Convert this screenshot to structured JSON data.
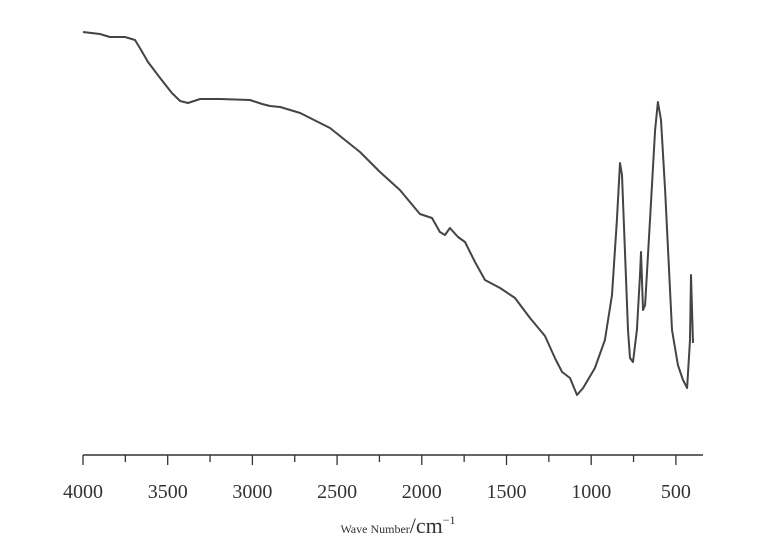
{
  "chart_data": {
    "type": "line",
    "title": "",
    "xlabel_text": "Wave Number",
    "xlabel_unit": "/cm",
    "xlabel_exp": "−1",
    "ylabel": "",
    "xlim": [
      4000,
      340
    ],
    "ylim": [
      0,
      100
    ],
    "x_reversed": true,
    "y_axis_shown": false,
    "grid": false,
    "line_color": "#444444",
    "xticks": [
      4000,
      3500,
      3000,
      2500,
      2000,
      1500,
      1000,
      500
    ],
    "xtick_labels": [
      "4000",
      "3500",
      "3000",
      "2500",
      "2000",
      "1500",
      "1000",
      "500"
    ],
    "minor_xticks": [
      3750,
      3250,
      2750,
      2250,
      1750,
      1250,
      750
    ],
    "series": [
      {
        "x": [
          4000,
          3900,
          3841,
          3752,
          3693,
          3664,
          3616,
          3545,
          3475,
          3427,
          3380,
          3309,
          3191,
          3014,
          2943,
          2896,
          2836,
          2718,
          2542,
          2365,
          2247,
          2129,
          2070,
          2011,
          1940,
          1893,
          1863,
          1834,
          1786,
          1745,
          1686,
          1627,
          1538,
          1450,
          1361,
          1273,
          1214,
          1172,
          1125,
          1084,
          1048,
          978,
          919,
          877,
          848,
          830,
          818,
          801,
          783,
          771,
          753,
          730,
          712,
          706,
          694,
          682,
          653,
          623,
          606,
          588,
          564,
          523,
          488,
          458,
          434,
          417,
          411,
          399
        ],
        "y": [
          99.5,
          99,
          98.25,
          98.25,
          97.5,
          95.5,
          92,
          88,
          84.25,
          82.25,
          81.75,
          82.75,
          82.75,
          82.5,
          81.5,
          81,
          80.75,
          79.25,
          75.5,
          69.5,
          64.5,
          60,
          57,
          54,
          53,
          49.5,
          48.75,
          50.5,
          48.25,
          47,
          42,
          37.5,
          35.5,
          33,
          28,
          23.5,
          18,
          14.5,
          13,
          8.75,
          10.5,
          15.5,
          22.5,
          33.75,
          52.5,
          66.75,
          63.75,
          45,
          25,
          18,
          17,
          25,
          38.75,
          44.5,
          30,
          31.25,
          52.5,
          75,
          82,
          77.5,
          60,
          25,
          16.25,
          12.5,
          10.5,
          22.5,
          38.75,
          21.75
        ]
      }
    ]
  }
}
